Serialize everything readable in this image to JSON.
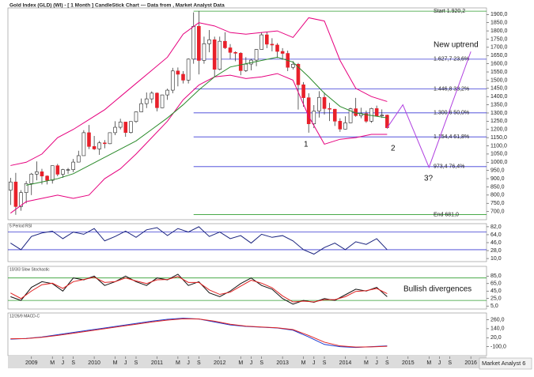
{
  "chart_data": [
    {
      "type": "candlestick",
      "title": "Gold Index (GLD) (WI) - [ 1 Month ] CandleStick Chart --- Data from , Market Analyst Data",
      "xlim": [
        -0.5,
        91
      ],
      "ylim": [
        650,
        1940
      ],
      "yticks": [
        {
          "value": 1900,
          "label": "1900,0"
        },
        {
          "value": 1850,
          "label": "1850,0"
        },
        {
          "value": 1800,
          "label": "1800,0"
        },
        {
          "value": 1750,
          "label": "1750,0"
        },
        {
          "value": 1700,
          "label": "1700,0"
        },
        {
          "value": 1650,
          "label": "1650,0"
        },
        {
          "value": 1600,
          "label": "1600,0"
        },
        {
          "value": 1550,
          "label": "1550,0"
        },
        {
          "value": 1500,
          "label": "1500,0"
        },
        {
          "value": 1450,
          "label": "1450,0"
        },
        {
          "value": 1400,
          "label": "1400,0"
        },
        {
          "value": 1350,
          "label": "1350,0"
        },
        {
          "value": 1300,
          "label": "1300,0"
        },
        {
          "value": 1250,
          "label": "1250,0"
        },
        {
          "value": 1200,
          "label": "1200,0"
        },
        {
          "value": 1150,
          "label": "1150,0"
        },
        {
          "value": 1100,
          "label": "1100,0"
        },
        {
          "value": 1050,
          "label": "1050,0"
        },
        {
          "value": 1000,
          "label": "1000,0"
        },
        {
          "value": 950,
          "label": "950,0"
        },
        {
          "value": 900,
          "label": "900,0"
        },
        {
          "value": 850,
          "label": "850,0"
        },
        {
          "value": 800,
          "label": "800,0"
        },
        {
          "value": 750,
          "label": "750,0"
        },
        {
          "value": 700,
          "label": "700,0"
        }
      ],
      "up_color": "#ffffff",
      "down_color": "#e8202a",
      "open": [
        830,
        880,
        730,
        815,
        870,
        928,
        942,
        916,
        890,
        979,
        927,
        955,
        955,
        1001,
        1040,
        1180,
        1096,
        1081,
        1118,
        1113,
        1180,
        1213,
        1245,
        1181,
        1248,
        1307,
        1357,
        1386,
        1421,
        1332,
        1410,
        1439,
        1556,
        1536,
        1500,
        1628,
        1828,
        1620,
        1722,
        1746,
        1566,
        1737,
        1697,
        1669,
        1664,
        1558,
        1598,
        1622,
        1687,
        1776,
        1719,
        1714,
        1675,
        1663,
        1578,
        1597,
        1472,
        1393,
        1234,
        1312,
        1395,
        1327,
        1323,
        1250,
        1202,
        1240,
        1326,
        1284,
        1296,
        1250,
        1327,
        1282,
        1287
      ],
      "high": [
        905,
        935,
        830,
        885,
        935,
        1005,
        960,
        920,
        980,
        990,
        960,
        965,
        1020,
        1070,
        1195,
        1227,
        1160,
        1130,
        1135,
        1180,
        1250,
        1265,
        1245,
        1250,
        1310,
        1388,
        1425,
        1432,
        1425,
        1412,
        1448,
        1575,
        1577,
        1555,
        1632,
        1913,
        1921,
        1765,
        1805,
        1765,
        1765,
        1792,
        1720,
        1675,
        1670,
        1640,
        1630,
        1690,
        1790,
        1795,
        1755,
        1725,
        1695,
        1680,
        1616,
        1605,
        1488,
        1420,
        1348,
        1433,
        1425,
        1362,
        1325,
        1268,
        1280,
        1332,
        1392,
        1332,
        1315,
        1332,
        1345,
        1322,
        1290
      ],
      "low": [
        740,
        680,
        705,
        750,
        800,
        890,
        865,
        865,
        870,
        915,
        905,
        930,
        940,
        1000,
        1040,
        1080,
        1075,
        1045,
        1085,
        1110,
        1165,
        1200,
        1155,
        1175,
        1240,
        1305,
        1330,
        1360,
        1310,
        1330,
        1380,
        1420,
        1462,
        1480,
        1480,
        1600,
        1535,
        1600,
        1670,
        1520,
        1560,
        1690,
        1630,
        1615,
        1530,
        1550,
        1560,
        1585,
        1685,
        1695,
        1675,
        1635,
        1625,
        1555,
        1565,
        1321,
        1338,
        1180,
        1208,
        1272,
        1290,
        1251,
        1221,
        1185,
        1200,
        1238,
        1277,
        1268,
        1240,
        1240,
        1280,
        1270,
        1205
      ],
      "close": [
        880,
        730,
        815,
        870,
        928,
        942,
        916,
        890,
        979,
        927,
        955,
        955,
        1001,
        1040,
        1180,
        1096,
        1081,
        1118,
        1113,
        1180,
        1213,
        1245,
        1181,
        1248,
        1307,
        1357,
        1386,
        1421,
        1332,
        1410,
        1439,
        1556,
        1536,
        1500,
        1628,
        1828,
        1620,
        1722,
        1746,
        1566,
        1737,
        1697,
        1669,
        1664,
        1558,
        1598,
        1622,
        1687,
        1776,
        1719,
        1714,
        1675,
        1663,
        1578,
        1597,
        1472,
        1393,
        1234,
        1312,
        1395,
        1327,
        1323,
        1250,
        1202,
        1240,
        1326,
        1284,
        1296,
        1250,
        1327,
        1282,
        1287,
        1210
      ],
      "series": [
        {
          "color": "#e6007e",
          "x": [
            0,
            3,
            6,
            9,
            12,
            15,
            18,
            21,
            24,
            27,
            30,
            33,
            36,
            39,
            42,
            45,
            48,
            51,
            54,
            57,
            60,
            63,
            66,
            69,
            72
          ],
          "values": [
            980,
            1000,
            1050,
            1150,
            1200,
            1260,
            1320,
            1400,
            1480,
            1560,
            1640,
            1780,
            1850,
            1830,
            1790,
            1780,
            1790,
            1800,
            1760,
            1880,
            1860,
            1620,
            1450,
            1400,
            1370
          ]
        },
        {
          "color": "#e6007e",
          "x": [
            0,
            3,
            6,
            9,
            12,
            15,
            18,
            21,
            24,
            27,
            30,
            33,
            36,
            39,
            42,
            45,
            48,
            51,
            54,
            57,
            60,
            63,
            66,
            69,
            72
          ],
          "values": [
            690,
            760,
            780,
            800,
            780,
            800,
            900,
            960,
            1050,
            1150,
            1250,
            1380,
            1470,
            1520,
            1530,
            1510,
            1520,
            1540,
            1500,
            1280,
            1110,
            1140,
            1150,
            1170,
            1170
          ]
        },
        {
          "color": "#2a8a2a",
          "x": [
            3,
            6,
            9,
            12,
            15,
            18,
            21,
            24,
            27,
            30,
            33,
            36,
            39,
            42,
            45,
            48,
            51,
            54,
            57,
            60,
            63,
            66,
            69,
            72
          ],
          "values": [
            860,
            880,
            900,
            930,
            980,
            1030,
            1080,
            1130,
            1200,
            1270,
            1350,
            1440,
            1520,
            1580,
            1600,
            1620,
            1640,
            1610,
            1520,
            1420,
            1340,
            1300,
            1285,
            1270
          ]
        },
        {
          "color": "#b040e0",
          "x": [
            72,
            75,
            80,
            88
          ],
          "values": [
            1210,
            1350,
            969,
            1674
          ]
        }
      ],
      "fib_from": 35,
      "fib_levels": [
        {
          "value": 1920.2,
          "label": "Start 1.920,2",
          "color": "#2e9e2e"
        },
        {
          "value": 1627.7,
          "label": "1.627,7 23,6%",
          "color": "#3b3bd6"
        },
        {
          "value": 1446.8,
          "label": "1.446,8 38,2%",
          "color": "#3b3bd6"
        },
        {
          "value": 1300.6,
          "label": "1.300,6 50,0%",
          "color": "#3b3bd6"
        },
        {
          "value": 1154.4,
          "label": "1.154,4 61,8%",
          "color": "#3b3bd6"
        },
        {
          "value": 973.4,
          "label": "973,4 76,4%",
          "color": "#3b3bd6"
        },
        {
          "value": 681.0,
          "label": "End 681,0",
          "color": "#2e9e2e"
        }
      ],
      "annotations": [
        "New uptrend",
        "1",
        "2",
        "3?"
      ]
    },
    {
      "type": "line",
      "title": "5 Period RSI",
      "xlim": [
        -0.5,
        91
      ],
      "ylim": [
        3,
        89
      ],
      "yticks": [
        {
          "value": 82,
          "label": "82,0"
        },
        {
          "value": 64,
          "label": "64,0"
        },
        {
          "value": 46,
          "label": "46,0"
        },
        {
          "value": 28,
          "label": "28,0"
        },
        {
          "value": 10,
          "label": "10,0"
        }
      ],
      "levels": [
        70,
        30
      ],
      "level_color": "#3a3ad0",
      "series": [
        {
          "color": "#1a237e",
          "x": [
            0,
            2,
            4,
            6,
            8,
            10,
            12,
            14,
            16,
            18,
            20,
            22,
            24,
            26,
            28,
            30,
            32,
            34,
            36,
            38,
            40,
            42,
            44,
            46,
            48,
            50,
            52,
            54,
            56,
            58,
            60,
            62,
            64,
            66,
            68,
            70,
            72
          ],
          "values": [
            45,
            30,
            60,
            68,
            72,
            55,
            70,
            65,
            78,
            50,
            60,
            72,
            58,
            75,
            80,
            62,
            78,
            70,
            82,
            60,
            70,
            55,
            62,
            45,
            65,
            58,
            62,
            50,
            30,
            20,
            35,
            45,
            30,
            48,
            42,
            55,
            30
          ]
        }
      ]
    },
    {
      "type": "line",
      "title": "10/3/3 Slow Stochastic",
      "xlim": [
        -0.5,
        91
      ],
      "ylim": [
        -3,
        111
      ],
      "yticks": [
        {
          "value": 85,
          "label": "85,0"
        },
        {
          "value": 65,
          "label": "65,0"
        },
        {
          "value": 45,
          "label": "45,0"
        },
        {
          "value": 25,
          "label": "25,0"
        },
        {
          "value": 5,
          "label": "5,0"
        }
      ],
      "levels": [
        80,
        20
      ],
      "level_color": "#2e9e2e",
      "series": [
        {
          "color": "#111111",
          "x": [
            0,
            2,
            4,
            6,
            8,
            10,
            12,
            14,
            16,
            18,
            20,
            22,
            24,
            26,
            28,
            30,
            32,
            34,
            36,
            38,
            40,
            42,
            44,
            46,
            48,
            50,
            52,
            54,
            56,
            58,
            60,
            62,
            64,
            66,
            68,
            70,
            72
          ],
          "values": [
            30,
            20,
            55,
            70,
            65,
            45,
            80,
            75,
            85,
            60,
            70,
            85,
            70,
            60,
            80,
            75,
            90,
            60,
            70,
            40,
            30,
            45,
            65,
            80,
            60,
            50,
            25,
            10,
            20,
            15,
            25,
            20,
            35,
            50,
            45,
            55,
            30
          ]
        },
        {
          "color": "#e02020",
          "x": [
            0,
            2,
            4,
            6,
            8,
            10,
            12,
            14,
            16,
            18,
            20,
            22,
            24,
            26,
            28,
            30,
            32,
            34,
            36,
            38,
            40,
            42,
            44,
            46,
            48,
            50,
            52,
            54,
            56,
            58,
            60,
            62,
            64,
            66,
            68,
            70,
            72
          ],
          "values": [
            40,
            25,
            45,
            62,
            66,
            52,
            70,
            76,
            82,
            68,
            70,
            80,
            72,
            65,
            75,
            76,
            84,
            68,
            68,
            48,
            36,
            42,
            58,
            74,
            66,
            54,
            32,
            16,
            18,
            16,
            22,
            22,
            30,
            44,
            46,
            52,
            38
          ]
        }
      ],
      "annotations": [
        "Bullish divergences"
      ]
    },
    {
      "type": "line",
      "title": "12/26/9 MACD-C",
      "xlim": [
        -0.5,
        91
      ],
      "ylim": [
        -220,
        350
      ],
      "yticks": [
        {
          "value": 260,
          "label": "260,0"
        },
        {
          "value": 140,
          "label": "140,0"
        },
        {
          "value": 20,
          "label": "20,0"
        },
        {
          "value": -100,
          "label": "-100,0"
        }
      ],
      "series": [
        {
          "color": "#1a3ad0",
          "x": [
            0,
            3,
            6,
            9,
            12,
            15,
            18,
            21,
            24,
            27,
            30,
            33,
            36,
            39,
            42,
            45,
            48,
            51,
            54,
            57,
            60,
            63,
            66,
            69,
            72
          ],
          "values": [
            0,
            10,
            30,
            60,
            90,
            120,
            150,
            180,
            210,
            240,
            265,
            280,
            270,
            230,
            190,
            170,
            160,
            150,
            120,
            30,
            -70,
            -100,
            -110,
            -100,
            -90
          ]
        },
        {
          "color": "#e02020",
          "x": [
            0,
            3,
            6,
            9,
            12,
            15,
            18,
            21,
            24,
            27,
            30,
            33,
            36,
            39,
            42,
            45,
            48,
            51,
            54,
            57,
            60,
            63,
            66,
            69,
            72
          ],
          "values": [
            5,
            8,
            25,
            50,
            80,
            110,
            140,
            170,
            200,
            230,
            255,
            272,
            270,
            240,
            200,
            175,
            162,
            152,
            128,
            50,
            -40,
            -90,
            -105,
            -102,
            -95
          ]
        }
      ],
      "xticks": [
        {
          "value": 4,
          "label": "2009"
        },
        {
          "value": 8,
          "label": "M"
        },
        {
          "value": 10,
          "label": "J"
        },
        {
          "value": 12,
          "label": "S"
        },
        {
          "value": 16,
          "label": "2010"
        },
        {
          "value": 20,
          "label": "M"
        },
        {
          "value": 22,
          "label": "J"
        },
        {
          "value": 24,
          "label": "S"
        },
        {
          "value": 28,
          "label": "2011"
        },
        {
          "value": 32,
          "label": "M"
        },
        {
          "value": 34,
          "label": "J"
        },
        {
          "value": 36,
          "label": "S"
        },
        {
          "value": 40,
          "label": "2012"
        },
        {
          "value": 44,
          "label": "M"
        },
        {
          "value": 46,
          "label": "J"
        },
        {
          "value": 48,
          "label": "S"
        },
        {
          "value": 52,
          "label": "2013"
        },
        {
          "value": 56,
          "label": "M"
        },
        {
          "value": 58,
          "label": "J"
        },
        {
          "value": 60,
          "label": "S"
        },
        {
          "value": 64,
          "label": "2014"
        },
        {
          "value": 68,
          "label": "M"
        },
        {
          "value": 70,
          "label": "J"
        },
        {
          "value": 72,
          "label": "S"
        },
        {
          "value": 76,
          "label": "2015"
        },
        {
          "value": 80,
          "label": "M"
        },
        {
          "value": 82,
          "label": "J"
        },
        {
          "value": 84,
          "label": "S"
        },
        {
          "value": 88,
          "label": "2016"
        }
      ]
    }
  ],
  "footer": "Market Analyst 6"
}
